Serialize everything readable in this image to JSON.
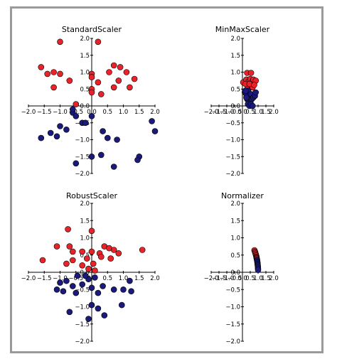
{
  "chart_data": [
    {
      "type": "scatter",
      "title": "StandardScaler",
      "xlim": [
        -2.0,
        2.0
      ],
      "ylim": [
        -2.0,
        2.0
      ],
      "xticks": [
        "−2.0",
        "−1.5",
        "−1.0",
        "−0.5",
        "0.0",
        "0.5",
        "1.0",
        "1.5",
        "2.0"
      ],
      "yticks": [
        "2.0",
        "1.5",
        "1.0",
        "0.5",
        "0.0",
        "−0.5",
        "−1.0",
        "−1.5",
        "−2.0"
      ],
      "xtick_values": [
        -2.0,
        -1.5,
        -1.0,
        -0.5,
        0.0,
        0.5,
        1.0,
        1.5,
        2.0
      ],
      "ytick_values": [
        2.0,
        1.5,
        1.0,
        0.5,
        0.0,
        -0.5,
        -1.0,
        -1.5,
        -2.0
      ],
      "series": [
        {
          "color": "#e8242a",
          "points": [
            [
              -1.0,
              1.9
            ],
            [
              0.2,
              1.9
            ],
            [
              -1.6,
              1.15
            ],
            [
              -1.2,
              1.0
            ],
            [
              -1.0,
              0.95
            ],
            [
              -0.7,
              0.75
            ],
            [
              0.0,
              0.95
            ],
            [
              0.0,
              0.85
            ],
            [
              0.55,
              1.0
            ],
            [
              0.7,
              1.2
            ],
            [
              0.9,
              1.15
            ],
            [
              1.1,
              1.0
            ],
            [
              0.85,
              0.75
            ],
            [
              1.35,
              0.8
            ],
            [
              1.2,
              0.55
            ],
            [
              -1.2,
              0.55
            ],
            [
              0.0,
              0.5
            ],
            [
              0.2,
              0.7
            ],
            [
              0.3,
              0.35
            ],
            [
              -1.4,
              0.95
            ],
            [
              -0.5,
              0.05
            ],
            [
              0.7,
              0.55
            ],
            [
              0.0,
              0.4
            ]
          ]
        },
        {
          "color": "#1a1a7c",
          "points": [
            [
              -0.8,
              -0.7
            ],
            [
              -1.0,
              -0.6
            ],
            [
              -0.3,
              -0.5
            ],
            [
              -0.2,
              -0.5
            ],
            [
              -0.6,
              -0.2
            ],
            [
              -0.5,
              -0.3
            ],
            [
              0.0,
              -0.3
            ],
            [
              -1.3,
              -0.8
            ],
            [
              -1.1,
              -0.9
            ],
            [
              -1.6,
              -0.95
            ],
            [
              0.5,
              -0.95
            ],
            [
              0.8,
              -1.0
            ],
            [
              0.35,
              -0.75
            ],
            [
              1.9,
              -0.45
            ],
            [
              2.0,
              -0.75
            ],
            [
              -0.5,
              -1.7
            ],
            [
              0.0,
              -1.5
            ],
            [
              0.3,
              -1.45
            ],
            [
              0.7,
              -1.8
            ],
            [
              1.5,
              -1.5
            ],
            [
              1.45,
              -1.6
            ],
            [
              -0.6,
              -0.1
            ]
          ]
        }
      ]
    },
    {
      "type": "scatter",
      "title": "MinMaxScaler",
      "xlim": [
        -2.0,
        2.0
      ],
      "ylim": [
        -2.0,
        2.0
      ],
      "xticks": [
        "−2.0",
        "−1.5",
        "−1.0",
        "−0.5",
        "0.0",
        "0.5",
        "1.0",
        "1.5",
        "2.0"
      ],
      "yticks": [
        "2.0",
        "1.5",
        "1.0",
        "0.5",
        "0.0",
        "−0.5",
        "−1.0",
        "−1.5",
        "−2.0"
      ],
      "xtick_values": [
        -2.0,
        -1.5,
        -1.0,
        -0.5,
        0.0,
        0.5,
        1.0,
        1.5,
        2.0
      ],
      "ytick_values": [
        2.0,
        1.5,
        1.0,
        0.5,
        0.0,
        -0.5,
        -1.0,
        -1.5,
        -2.0
      ],
      "series": [
        {
          "color": "#e8242a",
          "points": [
            [
              0.05,
              0.7
            ],
            [
              0.3,
              0.98
            ],
            [
              0.55,
              0.98
            ],
            [
              0.25,
              0.78
            ],
            [
              0.4,
              0.72
            ],
            [
              0.5,
              0.8
            ],
            [
              0.6,
              0.7
            ],
            [
              0.7,
              0.78
            ],
            [
              0.85,
              0.75
            ],
            [
              0.35,
              0.6
            ],
            [
              0.5,
              0.55
            ],
            [
              0.65,
              0.55
            ],
            [
              0.2,
              0.65
            ],
            [
              0.45,
              0.65
            ],
            [
              0.75,
              0.62
            ],
            [
              0.3,
              0.5
            ]
          ]
        },
        {
          "color": "#1a1a7c",
          "points": [
            [
              0.15,
              0.4
            ],
            [
              0.25,
              0.35
            ],
            [
              0.35,
              0.45
            ],
            [
              0.45,
              0.3
            ],
            [
              0.55,
              0.35
            ],
            [
              0.3,
              0.2
            ],
            [
              0.4,
              0.15
            ],
            [
              0.5,
              0.1
            ],
            [
              0.6,
              0.2
            ],
            [
              0.7,
              0.25
            ],
            [
              0.8,
              0.3
            ],
            [
              0.85,
              0.4
            ],
            [
              0.35,
              0.05
            ],
            [
              0.45,
              0.0
            ],
            [
              0.55,
              0.05
            ],
            [
              0.65,
              0.0
            ],
            [
              0.25,
              0.25
            ],
            [
              0.2,
              0.45
            ]
          ]
        }
      ]
    },
    {
      "type": "scatter",
      "title": "RobustScaler",
      "xlim": [
        -2.0,
        2.0
      ],
      "ylim": [
        -2.0,
        2.0
      ],
      "xticks": [
        "−2.0",
        "−1.5",
        "−1.0",
        "−0.5",
        "0.0",
        "0.5",
        "1.0",
        "1.5",
        "2.0"
      ],
      "yticks": [
        "2.0",
        "1.5",
        "1.0",
        "0.5",
        "0.0",
        "−0.5",
        "−1.0",
        "−1.5",
        "−2.0"
      ],
      "xtick_values": [
        -2.0,
        -1.5,
        -1.0,
        -0.5,
        0.0,
        0.5,
        1.0,
        1.5,
        2.0
      ],
      "ytick_values": [
        2.0,
        1.5,
        1.0,
        0.5,
        0.0,
        -0.5,
        -1.0,
        -1.5,
        -2.0
      ],
      "series": [
        {
          "color": "#e8242a",
          "points": [
            [
              -0.75,
              1.25
            ],
            [
              0.0,
              1.2
            ],
            [
              -1.55,
              0.35
            ],
            [
              -1.1,
              0.75
            ],
            [
              -0.7,
              0.75
            ],
            [
              -0.6,
              0.6
            ],
            [
              -0.3,
              0.6
            ],
            [
              0.0,
              0.6
            ],
            [
              0.25,
              0.55
            ],
            [
              0.4,
              0.75
            ],
            [
              0.55,
              0.7
            ],
            [
              0.7,
              0.65
            ],
            [
              0.85,
              0.55
            ],
            [
              1.6,
              0.65
            ],
            [
              -0.8,
              0.25
            ],
            [
              -0.6,
              0.35
            ],
            [
              0.05,
              0.25
            ],
            [
              0.3,
              0.45
            ],
            [
              0.6,
              0.4
            ],
            [
              -0.15,
              0.4
            ],
            [
              0.1,
              0.05
            ],
            [
              -0.3,
              0.2
            ],
            [
              -0.1,
              0.1
            ]
          ]
        },
        {
          "color": "#1a1a7c",
          "points": [
            [
              -1.0,
              -0.3
            ],
            [
              -0.8,
              -0.25
            ],
            [
              -0.6,
              -0.4
            ],
            [
              -0.45,
              -0.1
            ],
            [
              -0.3,
              -0.35
            ],
            [
              -0.1,
              -0.2
            ],
            [
              0.0,
              -0.45
            ],
            [
              -0.9,
              -0.55
            ],
            [
              -1.1,
              -0.5
            ],
            [
              -0.5,
              -0.6
            ],
            [
              0.2,
              -0.6
            ],
            [
              0.35,
              -0.4
            ],
            [
              0.7,
              -0.5
            ],
            [
              1.0,
              -0.5
            ],
            [
              1.2,
              -0.25
            ],
            [
              1.25,
              -0.55
            ],
            [
              -0.7,
              -1.15
            ],
            [
              0.0,
              -0.95
            ],
            [
              0.2,
              -1.05
            ],
            [
              0.4,
              -1.25
            ],
            [
              0.95,
              -0.95
            ],
            [
              -0.1,
              -1.35
            ],
            [
              -0.2,
              -0.1
            ],
            [
              0.1,
              -0.15
            ]
          ]
        }
      ]
    },
    {
      "type": "scatter",
      "title": "Normalizer",
      "xlim": [
        -2.0,
        2.0
      ],
      "ylim": [
        -2.0,
        2.0
      ],
      "xticks": [
        "−2.0",
        "−1.5",
        "−1.0",
        "−0.5",
        "0.0",
        "0.5",
        "1.0",
        "1.5",
        "2.0"
      ],
      "yticks": [
        "2.0",
        "1.5",
        "1.0",
        "0.5",
        "0.0",
        "−0.5",
        "−1.0",
        "−1.5",
        "−2.0"
      ],
      "xtick_values": [
        -2.0,
        -1.5,
        -1.0,
        -0.5,
        0.0,
        0.5,
        1.0,
        1.5,
        2.0
      ],
      "ytick_values": [
        2.0,
        1.5,
        1.0,
        0.5,
        0.0,
        -0.5,
        -1.0,
        -1.5,
        -2.0
      ],
      "series": [
        {
          "color": "#e8242a",
          "points": [
            [
              0.77,
              0.64
            ],
            [
              0.8,
              0.6
            ],
            [
              0.82,
              0.57
            ],
            [
              0.84,
              0.54
            ],
            [
              0.86,
              0.51
            ],
            [
              0.88,
              0.48
            ],
            [
              0.89,
              0.45
            ],
            [
              0.9,
              0.43
            ],
            [
              0.91,
              0.41
            ],
            [
              0.92,
              0.39
            ]
          ]
        },
        {
          "color": "#1a1a7c",
          "points": [
            [
              0.93,
              0.36
            ],
            [
              0.94,
              0.34
            ],
            [
              0.95,
              0.31
            ],
            [
              0.96,
              0.28
            ],
            [
              0.97,
              0.25
            ],
            [
              0.975,
              0.22
            ],
            [
              0.98,
              0.19
            ],
            [
              0.99,
              0.15
            ],
            [
              0.995,
              0.11
            ],
            [
              0.998,
              0.07
            ]
          ]
        }
      ]
    }
  ]
}
